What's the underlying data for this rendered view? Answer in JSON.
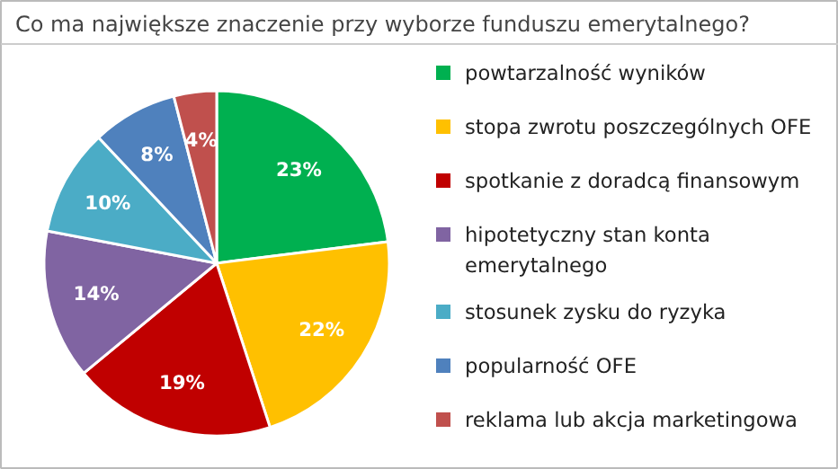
{
  "chart_data": {
    "type": "pie",
    "title": "Co ma największe znaczenie przy wyborze funduszu emerytalnego?",
    "categories": [
      "powtarzalność wyników",
      "stopa zwrotu poszczególnych OFE",
      "spotkanie z doradcą finansowym",
      "hipotetyczny stan konta emerytalnego",
      "stosunek zysku do ryzyka",
      "popularność OFE",
      "reklama lub akcja marketingowa"
    ],
    "values": [
      23,
      22,
      19,
      14,
      10,
      8,
      4
    ],
    "value_labels": [
      "23%",
      "22%",
      "19%",
      "14%",
      "10%",
      "8%",
      "4%"
    ],
    "colors": [
      "#00b050",
      "#ffc000",
      "#c00000",
      "#8064a2",
      "#4bacc6",
      "#4f81bd",
      "#c0504d"
    ],
    "legend": "right"
  }
}
